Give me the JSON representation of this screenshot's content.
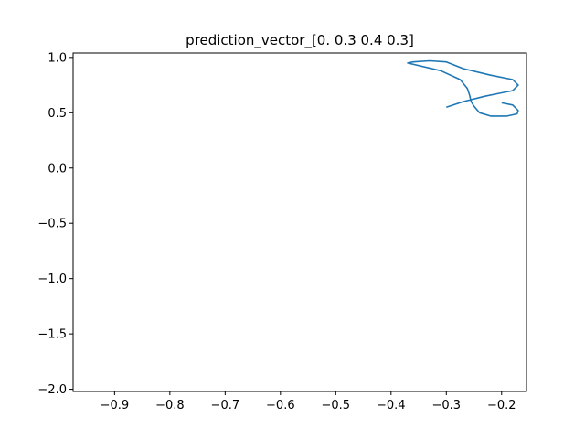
{
  "chart_data": {
    "type": "line",
    "title": "prediction_vector_[0.  0.3 0.4 0.3]",
    "xlabel": "",
    "ylabel": "",
    "xlim": [
      -0.975,
      -0.155
    ],
    "ylim": [
      -2.02,
      1.04
    ],
    "xticks": [
      -0.9,
      -0.8,
      -0.7,
      -0.6,
      -0.5,
      -0.4,
      -0.3,
      -0.2
    ],
    "xtick_labels": [
      "−0.9",
      "−0.8",
      "−0.7",
      "−0.6",
      "−0.5",
      "−0.4",
      "−0.3",
      "−0.2"
    ],
    "yticks": [
      -2.0,
      -1.5,
      -1.0,
      -0.5,
      0.0,
      0.5,
      1.0
    ],
    "ytick_labels": [
      "−2.0",
      "−1.5",
      "−1.0",
      "−0.5",
      "0.0",
      "0.5",
      "1.0"
    ],
    "grid": false,
    "series": [
      {
        "color": "#1f77b4",
        "points": [
          [
            -0.2,
            0.59
          ],
          [
            -0.18,
            0.57
          ],
          [
            -0.17,
            0.52
          ],
          [
            -0.172,
            0.49
          ],
          [
            -0.19,
            0.47
          ],
          [
            -0.22,
            0.47
          ],
          [
            -0.24,
            0.5
          ],
          [
            -0.245,
            0.53
          ],
          [
            -0.25,
            0.56
          ],
          [
            -0.255,
            0.6
          ],
          [
            -0.258,
            0.66
          ],
          [
            -0.262,
            0.72
          ],
          [
            -0.275,
            0.8
          ],
          [
            -0.31,
            0.88
          ],
          [
            -0.37,
            0.95
          ],
          [
            -0.36,
            0.96
          ],
          [
            -0.33,
            0.97
          ],
          [
            -0.3,
            0.96
          ],
          [
            -0.27,
            0.9
          ],
          [
            -0.22,
            0.84
          ],
          [
            -0.18,
            0.8
          ],
          [
            -0.17,
            0.75
          ],
          [
            -0.18,
            0.7
          ],
          [
            -0.2,
            0.68
          ],
          [
            -0.23,
            0.65
          ],
          [
            -0.27,
            0.6
          ],
          [
            -0.3,
            0.55
          ]
        ]
      }
    ]
  }
}
